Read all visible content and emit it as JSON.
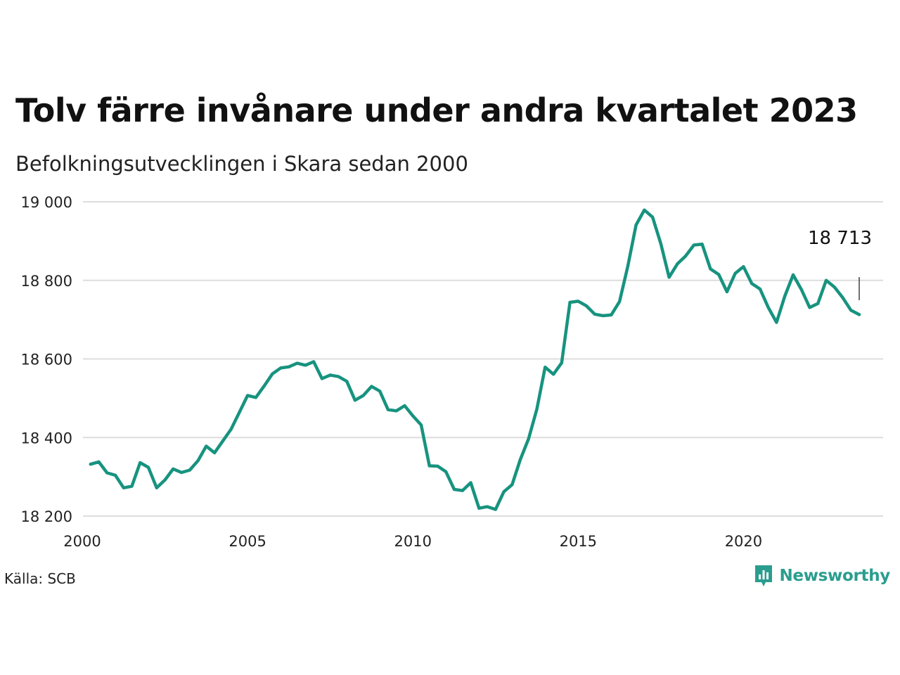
{
  "title": "Tolv färre invånare under andra kvartalet 2023",
  "subtitle": "Befolkningsutvecklingen i Skara sedan 2000",
  "source": "Källa: SCB",
  "brand": {
    "name": "Newsworthy",
    "icon": "newsworthy-chart-icon"
  },
  "colors": {
    "line": "#17937f",
    "grid": "#dddddd",
    "brand": "#2a9d8f"
  },
  "chart_data": {
    "type": "line",
    "ylim": [
      18200,
      19000
    ],
    "xlim": [
      2000,
      2023.5
    ],
    "y_ticks": [
      19000,
      18800,
      18600,
      18400,
      18200
    ],
    "y_tick_labels": [
      "19 000",
      "18 800",
      "18 600",
      "18 400",
      "18 200"
    ],
    "x_ticks": [
      2000,
      2005,
      2010,
      2015,
      2020
    ],
    "x_tick_labels": [
      "2000",
      "2005",
      "2010",
      "2015",
      "2020"
    ],
    "grid": "horizontal",
    "annotation": {
      "label": "18 713",
      "x": 2023.5
    },
    "series": [
      {
        "x": [
          2000.25,
          2000.5,
          2000.75,
          2001,
          2001.25,
          2001.5,
          2001.75,
          2002,
          2002.25,
          2002.5,
          2002.75,
          2003,
          2003.25,
          2003.5,
          2003.75,
          2004,
          2004.25,
          2004.5,
          2004.75,
          2005,
          2005.25,
          2005.5,
          2005.75,
          2006,
          2006.25,
          2006.5,
          2006.75,
          2007,
          2007.25,
          2007.5,
          2007.75,
          2008,
          2008.25,
          2008.5,
          2008.75,
          2009,
          2009.25,
          2009.5,
          2009.75,
          2010,
          2010.25,
          2010.5,
          2010.75,
          2011,
          2011.25,
          2011.5,
          2011.75,
          2012,
          2012.25,
          2012.5,
          2012.75,
          2013,
          2013.25,
          2013.5,
          2013.75,
          2014,
          2014.25,
          2014.5,
          2014.75,
          2015,
          2015.25,
          2015.5,
          2015.75,
          2016,
          2016.25,
          2016.5,
          2016.75,
          2017,
          2017.25,
          2017.5,
          2017.75,
          2018,
          2018.25,
          2018.5,
          2018.75,
          2019,
          2019.25,
          2019.5,
          2019.75,
          2020,
          2020.25,
          2020.5,
          2020.75,
          2021,
          2021.25,
          2021.5,
          2021.75,
          2022,
          2022.25,
          2022.5,
          2022.75,
          2023,
          2023.25,
          2023.5
        ],
        "y": [
          18332,
          18338,
          18310,
          18304,
          18272,
          18276,
          18336,
          18324,
          18272,
          18292,
          18320,
          18311,
          18317,
          18341,
          18378,
          18361,
          18391,
          18421,
          18464,
          18507,
          18502,
          18531,
          18562,
          18577,
          18580,
          18589,
          18584,
          18593,
          18550,
          18559,
          18555,
          18543,
          18495,
          18507,
          18530,
          18518,
          18471,
          18468,
          18481,
          18455,
          18432,
          18328,
          18327,
          18313,
          18268,
          18265,
          18285,
          18220,
          18224,
          18217,
          18262,
          18280,
          18344,
          18397,
          18472,
          18579,
          18561,
          18590,
          18744,
          18747,
          18735,
          18714,
          18710,
          18712,
          18746,
          18836,
          18941,
          18979,
          18961,
          18893,
          18808,
          18842,
          18862,
          18890,
          18892,
          18829,
          18815,
          18771,
          18818,
          18835,
          18792,
          18778,
          18731,
          18693,
          18760,
          18814,
          18777,
          18731,
          18741,
          18800,
          18783,
          18756,
          18724,
          18713
        ]
      }
    ]
  }
}
